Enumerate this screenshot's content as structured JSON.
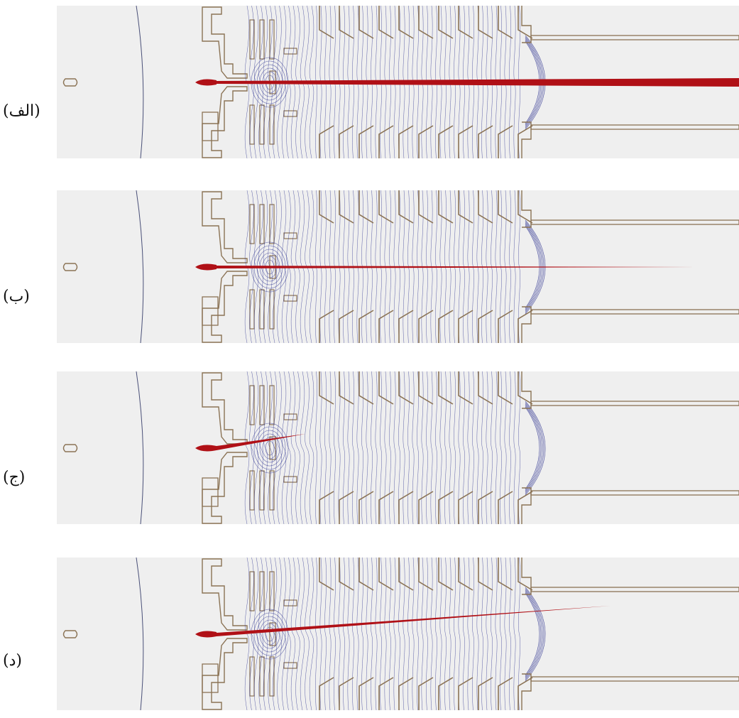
{
  "colors": {
    "background": "#efefef",
    "electrode": "#8b7355",
    "field_line": "#2a2f8f",
    "beam": "#b01016",
    "outer_line": "#4a5078"
  },
  "panels": [
    {
      "label": "(الف)",
      "beam": "full"
    },
    {
      "label": "(ب)",
      "beam": "long"
    },
    {
      "label": "(ج)",
      "beam": "short"
    },
    {
      "label": "(د)",
      "beam": "deflected"
    }
  ]
}
